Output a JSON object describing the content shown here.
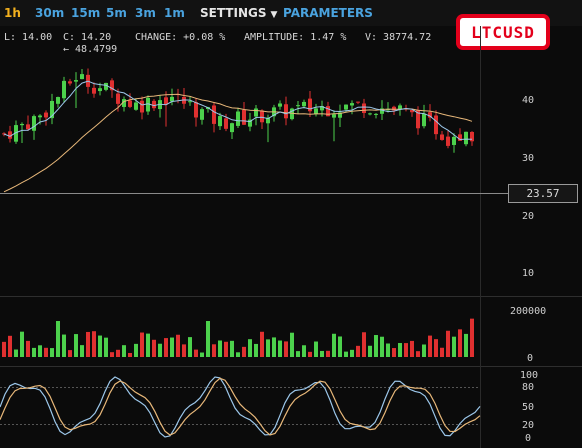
{
  "toolbar": {
    "timeframes": [
      "1h",
      "30m",
      "15m",
      "5m",
      "3m",
      "1m"
    ],
    "active": "1h",
    "settings_label": "SETTINGS",
    "parameters_label": "PARAMETERS"
  },
  "symbol": "LTCUSD",
  "info": {
    "low": "L: 14.00",
    "close": "C: 14.20",
    "change": "CHANGE: +0.08 %",
    "amplitude": "AMPLITUDE: 1.47 %",
    "volume": "V: 38774.72"
  },
  "high_marker": "← 48.4799",
  "last_price": "23.57",
  "axes": {
    "price_ticks": [
      "40",
      "30",
      "20",
      "10"
    ],
    "volume_ticks": [
      "200000",
      "0"
    ],
    "osc_ticks": [
      "100",
      "80",
      "50",
      "20",
      "0"
    ]
  },
  "colors": {
    "up": "#4cd14c",
    "down": "#e03030",
    "ma_fast": "#9cc7ea",
    "ma_slow": "#e8b87a",
    "accent": "#4aa3df",
    "active": "#f2b01e",
    "badge": "#e3001b"
  }
}
